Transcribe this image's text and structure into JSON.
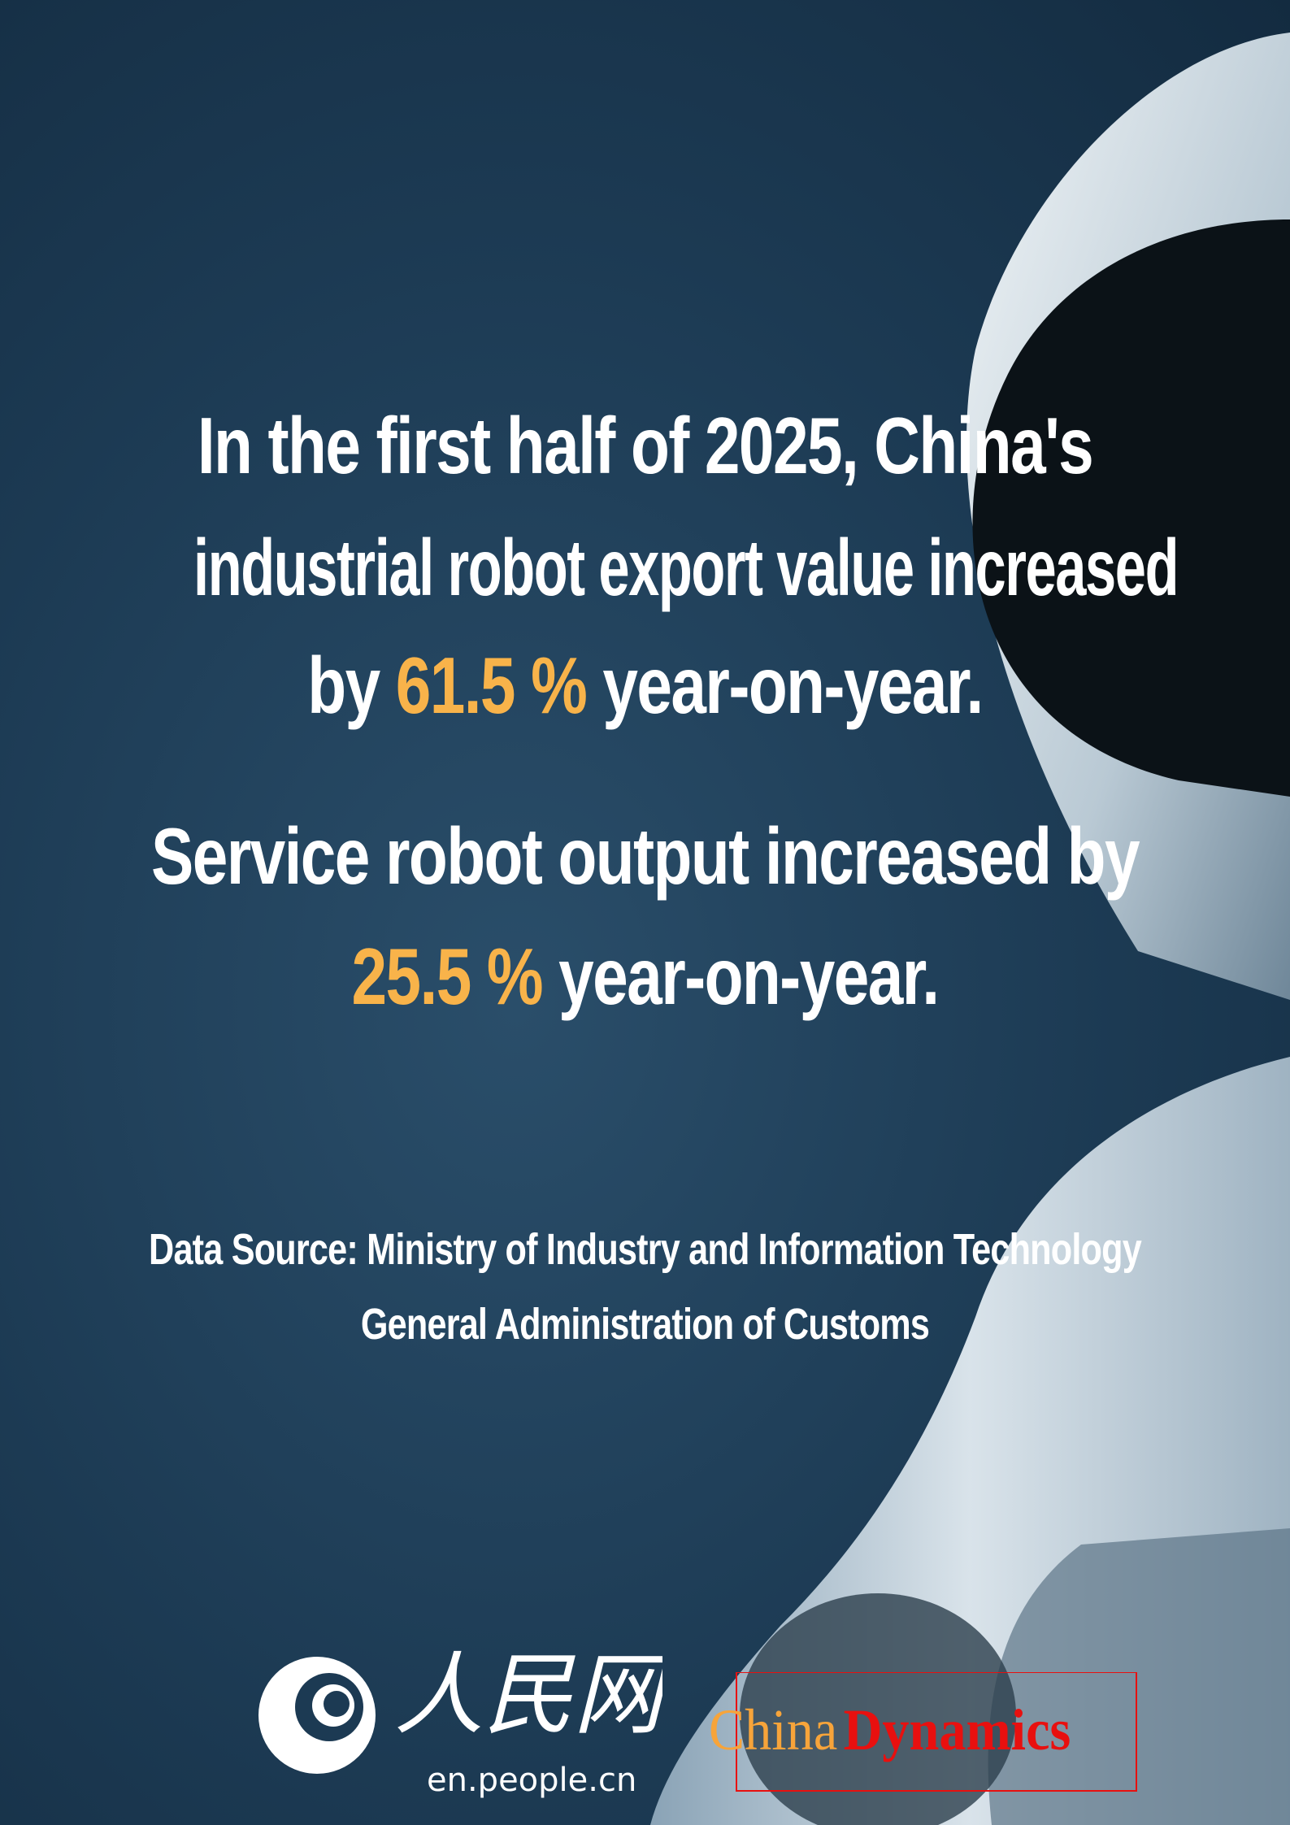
{
  "headline": {
    "line1": "In the first half of 2025, China's",
    "line2": "industrial robot export value increased",
    "line3_pre": "by ",
    "line3_value": "61.5 %",
    "line3_post": " year-on-year."
  },
  "subhead": {
    "line1": "Service robot output increased by",
    "line2_value": "25.5 %",
    "line2_post": " year-on-year."
  },
  "source": {
    "line1": "Data Source: Ministry of Industry and Information Technology",
    "line2": "General Administration of Customs"
  },
  "footer": {
    "people_logo_chinese": "人民网",
    "people_url": "en.people.cn",
    "brand_part1": "China",
    "brand_part2": "Dynamics"
  },
  "colors": {
    "background": "#1c3a53",
    "highlight": "#f8b34a",
    "text": "#ffffff",
    "brand_red": "#e8100f",
    "brand_orange": "#f7a43a"
  }
}
